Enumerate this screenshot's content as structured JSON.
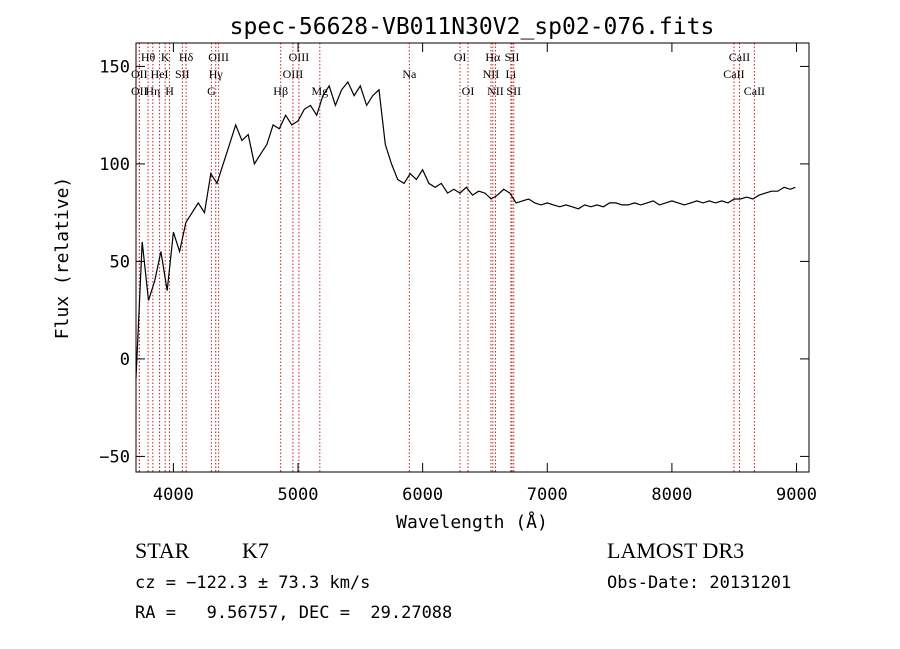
{
  "chart_data": {
    "type": "line",
    "title": "spec-56628-VB011N30V2_sp02-076.fits",
    "xlabel": "Wavelength (Å)",
    "ylabel": "Flux (relative)",
    "xlim": [
      3700,
      9100
    ],
    "ylim": [
      -58,
      162
    ],
    "x_ticks": [
      4000,
      5000,
      6000,
      7000,
      8000,
      9000
    ],
    "x_tick_labels": [
      "4000",
      "5000",
      "6000",
      "7000",
      "8000",
      "9000"
    ],
    "y_ticks": [
      -50,
      0,
      50,
      100,
      150
    ],
    "y_tick_labels": [
      "−50",
      "0",
      "50",
      "100",
      "150"
    ],
    "grid": false,
    "legend": "none",
    "line_color": "#000000",
    "marker_color": "#cc2222",
    "series": [
      {
        "x": [
          3700,
          3750,
          3800,
          3850,
          3900,
          3950,
          4000,
          4050,
          4100,
          4150,
          4200,
          4250,
          4300,
          4350,
          4400,
          4450,
          4500,
          4550,
          4600,
          4650,
          4700,
          4750,
          4800,
          4850,
          4900,
          4950,
          5000,
          5050,
          5100,
          5150,
          5200,
          5250,
          5300,
          5350,
          5400,
          5450,
          5500,
          5550,
          5600,
          5650,
          5700,
          5750,
          5800,
          5850,
          5900,
          5950,
          6000,
          6050,
          6100,
          6150,
          6200,
          6250,
          6300,
          6350,
          6400,
          6450,
          6500,
          6550,
          6600,
          6650,
          6700,
          6750,
          6800,
          6850,
          6900,
          6950,
          7000,
          7050,
          7100,
          7150,
          7200,
          7250,
          7300,
          7350,
          7400,
          7450,
          7500,
          7550,
          7600,
          7650,
          7700,
          7750,
          7800,
          7850,
          7900,
          7950,
          8000,
          8050,
          8100,
          8150,
          8200,
          8250,
          8300,
          8350,
          8400,
          8450,
          8500,
          8550,
          8600,
          8650,
          8700,
          8750,
          8800,
          8850,
          8900,
          8950,
          8990
        ],
        "y": [
          -10,
          60,
          30,
          40,
          55,
          35,
          65,
          55,
          70,
          75,
          80,
          75,
          95,
          90,
          100,
          110,
          120,
          112,
          115,
          100,
          105,
          110,
          120,
          118,
          125,
          120,
          122,
          128,
          130,
          125,
          135,
          140,
          130,
          138,
          142,
          135,
          140,
          130,
          135,
          138,
          110,
          100,
          92,
          90,
          95,
          92,
          97,
          90,
          88,
          90,
          85,
          87,
          85,
          88,
          84,
          86,
          85,
          82,
          84,
          87,
          85,
          80,
          81,
          82,
          80,
          79,
          80,
          79,
          78,
          79,
          78,
          77,
          79,
          78,
          79,
          78,
          80,
          80,
          79,
          79,
          80,
          79,
          80,
          81,
          79,
          80,
          81,
          80,
          79,
          80,
          81,
          80,
          81,
          80,
          81,
          80,
          82,
          82,
          83,
          82,
          84,
          85,
          86,
          86,
          88,
          87,
          88
        ]
      }
    ],
    "line_markers": [
      {
        "label": "Hθ",
        "wavelength": 3797,
        "row": 1
      },
      {
        "label": "OII",
        "wavelength": 3727,
        "row": 2
      },
      {
        "label": "OII",
        "wavelength": 3727,
        "row": 3
      },
      {
        "label": "K",
        "wavelength": 3934,
        "row": 1
      },
      {
        "label": "HeI",
        "wavelength": 3889,
        "row": 2
      },
      {
        "label": "Hη",
        "wavelength": 3835,
        "row": 3
      },
      {
        "label": "H",
        "wavelength": 3969,
        "row": 3
      },
      {
        "label": "Hδ",
        "wavelength": 4102,
        "row": 1
      },
      {
        "label": "SII",
        "wavelength": 4072,
        "row": 2
      },
      {
        "label": "OIII",
        "wavelength": 4363,
        "row": 1
      },
      {
        "label": "Hγ",
        "wavelength": 4340,
        "row": 2
      },
      {
        "label": "G",
        "wavelength": 4305,
        "row": 3
      },
      {
        "label": "OIII",
        "wavelength": 5007,
        "row": 1
      },
      {
        "label": "OIII",
        "wavelength": 4959,
        "row": 2
      },
      {
        "label": "Hβ",
        "wavelength": 4861,
        "row": 3
      },
      {
        "label": "Mg",
        "wavelength": 5175,
        "row": 3
      },
      {
        "label": "Na",
        "wavelength": 5893,
        "row": 2
      },
      {
        "label": "OI",
        "wavelength": 6300,
        "row": 1
      },
      {
        "label": "OI",
        "wavelength": 6364,
        "row": 3
      },
      {
        "label": "Hα",
        "wavelength": 6563,
        "row": 1
      },
      {
        "label": "SII",
        "wavelength": 6717,
        "row": 1
      },
      {
        "label": "NII",
        "wavelength": 6548,
        "row": 2
      },
      {
        "label": "Li",
        "wavelength": 6708,
        "row": 2
      },
      {
        "label": "NII",
        "wavelength": 6584,
        "row": 3
      },
      {
        "label": "SII",
        "wavelength": 6731,
        "row": 3
      },
      {
        "label": "CaII",
        "wavelength": 8542,
        "row": 1
      },
      {
        "label": "CaII",
        "wavelength": 8498,
        "row": 2
      },
      {
        "label": "CaII",
        "wavelength": 8662,
        "row": 3
      }
    ]
  },
  "info": {
    "object_class": "STAR",
    "subclass": "K7",
    "survey": "LAMOST DR3",
    "cz": "cz = −122.3 ± 73.3 km/s",
    "obs_date": "Obs-Date: 20131201",
    "coords": "RA =   9.56757, DEC =  29.27088"
  }
}
